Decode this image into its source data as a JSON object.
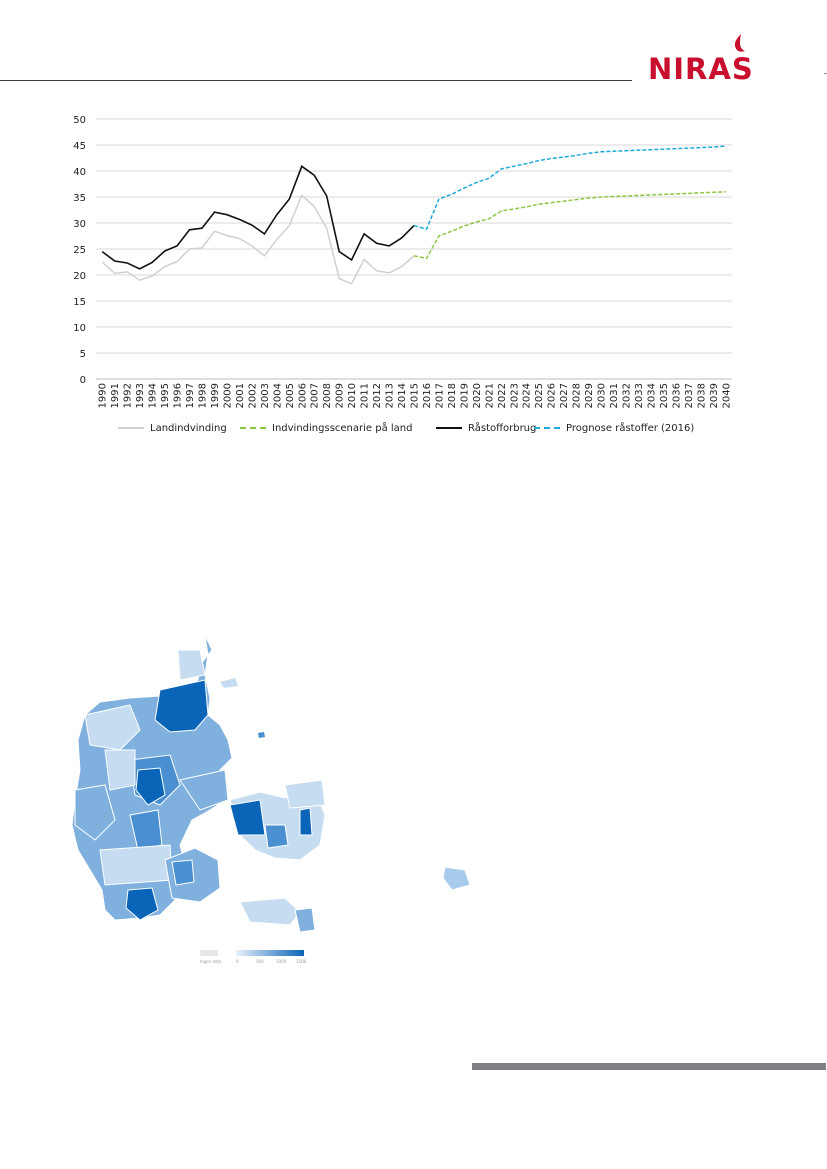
{
  "header": {
    "brand": "NIRAS",
    "brand_color": "#c8102e"
  },
  "chart_data": {
    "type": "line",
    "title": "",
    "xlabel": "",
    "ylabel": "",
    "ylim": [
      0,
      50
    ],
    "yticks": [
      0,
      5,
      10,
      15,
      20,
      25,
      30,
      35,
      40,
      45,
      50
    ],
    "grid": "horizontal",
    "legend_position": "bottom",
    "x": [
      "1990",
      "1991",
      "1992",
      "1993",
      "1994",
      "1995",
      "1996",
      "1997",
      "1998",
      "1999",
      "2000",
      "2001",
      "2002",
      "2003",
      "2004",
      "2005",
      "2006",
      "2007",
      "2008",
      "2009",
      "2010",
      "2011",
      "2012",
      "2013",
      "2014",
      "2015",
      "2016",
      "2017",
      "2018",
      "2019",
      "2020",
      "2021",
      "2022",
      "2023",
      "2024",
      "2025",
      "2026",
      "2027",
      "2028",
      "2029",
      "2030",
      "2031",
      "2032",
      "2033",
      "2034",
      "2035",
      "2036",
      "2037",
      "2038",
      "2039",
      "2040"
    ],
    "series": [
      {
        "name": "Landindvinding",
        "color": "#d0d0d0",
        "style": "solid",
        "values": [
          22.5,
          20.3,
          20.6,
          19.0,
          19.8,
          21.6,
          22.6,
          25.0,
          25.2,
          28.4,
          27.6,
          27.0,
          25.6,
          23.7,
          26.8,
          29.5,
          35.3,
          33.2,
          29.0,
          19.3,
          18.3,
          23.0,
          20.8,
          20.4,
          21.6,
          23.7,
          null,
          null,
          null,
          null,
          null,
          null,
          null,
          null,
          null,
          null,
          null,
          null,
          null,
          null,
          null,
          null,
          null,
          null,
          null,
          null,
          null,
          null,
          null,
          null,
          null
        ]
      },
      {
        "name": "Indvindingsscenarie på land",
        "color": "#8cc63f",
        "style": "dashed",
        "values": [
          null,
          null,
          null,
          null,
          null,
          null,
          null,
          null,
          null,
          null,
          null,
          null,
          null,
          null,
          null,
          null,
          null,
          null,
          null,
          null,
          null,
          null,
          null,
          null,
          null,
          23.7,
          23.2,
          27.5,
          28.4,
          29.4,
          30.2,
          30.8,
          32.3,
          32.7,
          33.1,
          33.6,
          33.9,
          34.2,
          34.5,
          34.8,
          35.0,
          35.1,
          35.2,
          35.3,
          35.4,
          35.5,
          35.6,
          35.7,
          35.8,
          35.9,
          36.0
        ]
      },
      {
        "name": "Råstofforbrug",
        "color": "#111111",
        "style": "solid",
        "values": [
          24.5,
          22.7,
          22.3,
          21.2,
          22.4,
          24.6,
          25.6,
          28.7,
          29.0,
          32.1,
          31.6,
          30.7,
          29.6,
          27.9,
          31.6,
          34.6,
          40.9,
          39.2,
          35.2,
          24.5,
          22.9,
          27.9,
          26.1,
          25.6,
          27.1,
          29.5,
          null,
          null,
          null,
          null,
          null,
          null,
          null,
          null,
          null,
          null,
          null,
          null,
          null,
          null,
          null,
          null,
          null,
          null,
          null,
          null,
          null,
          null,
          null,
          null,
          null
        ]
      },
      {
        "name": "Prognose råstoffer (2016)",
        "color": "#1eaad9",
        "style": "dashed",
        "values": [
          null,
          null,
          null,
          null,
          null,
          null,
          null,
          null,
          null,
          null,
          null,
          null,
          null,
          null,
          null,
          null,
          null,
          null,
          null,
          null,
          null,
          null,
          null,
          null,
          null,
          29.5,
          28.8,
          34.6,
          35.5,
          36.7,
          37.8,
          38.6,
          40.4,
          40.9,
          41.4,
          42.0,
          42.4,
          42.7,
          43.0,
          43.4,
          43.7,
          43.8,
          43.9,
          44.0,
          44.1,
          44.2,
          44.3,
          44.4,
          44.5,
          44.6,
          44.8
        ]
      }
    ]
  },
  "map": {
    "legend_no_data": "Ingen data",
    "legend_ticks": [
      "0",
      "500",
      "1000",
      "1500"
    ],
    "colors": {
      "light": "#c6dcf0",
      "mid": "#7fb0de",
      "strong": "#4a90d0",
      "dark": "#0a64b8",
      "nodata": "#e6e6e6"
    }
  },
  "footer": {
    "bar_color": "#7f7f85"
  }
}
